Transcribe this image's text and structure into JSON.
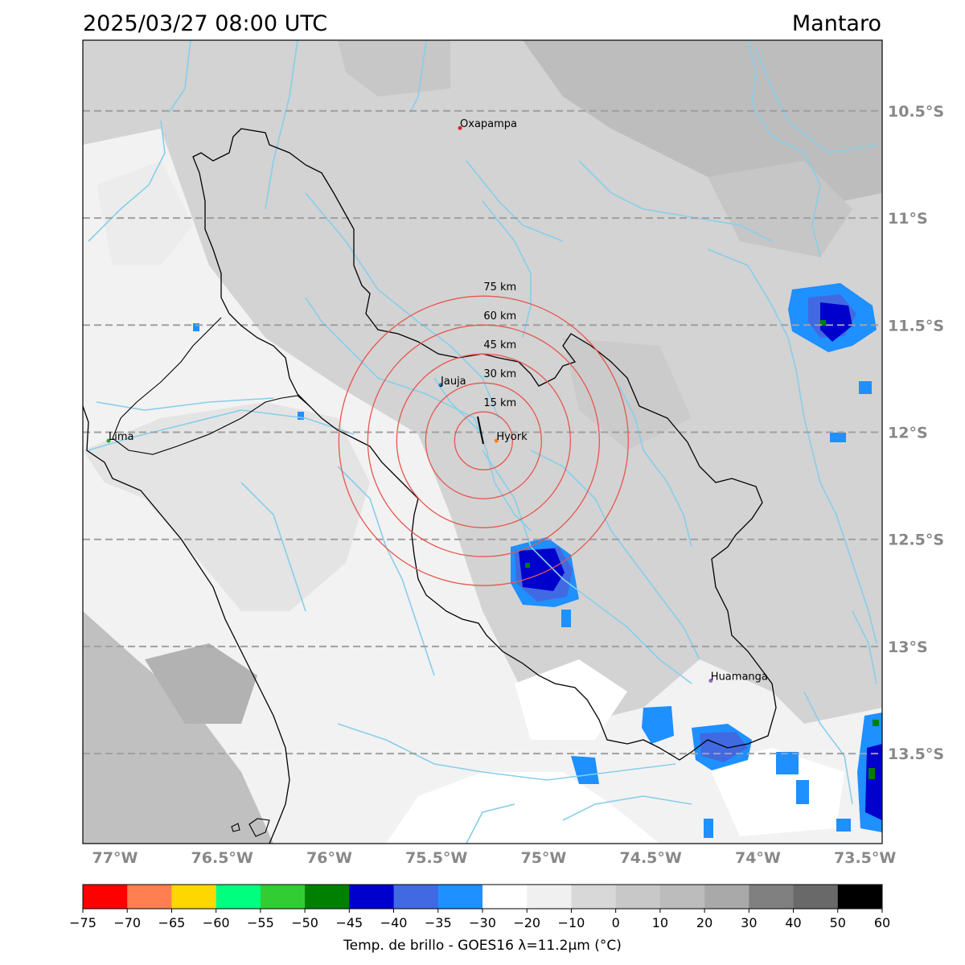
{
  "header": {
    "datetime": "2025/03/27 08:00 UTC",
    "region": "Mantaro"
  },
  "map": {
    "lon_range": [
      -77.15,
      -73.42
    ],
    "lat_range": [
      -13.92,
      -10.17
    ],
    "lat_gridlines": [
      {
        "value": -10.5,
        "label": "10.5°S"
      },
      {
        "value": -11.0,
        "label": "11°S"
      },
      {
        "value": -11.5,
        "label": "11.5°S"
      },
      {
        "value": -12.0,
        "label": "12°S"
      },
      {
        "value": -12.5,
        "label": "12.5°S"
      },
      {
        "value": -13.0,
        "label": "13°S"
      },
      {
        "value": -13.5,
        "label": "13.5°S"
      }
    ],
    "lon_ticks": [
      {
        "value": -77.0,
        "label": "77°W"
      },
      {
        "value": -76.5,
        "label": "76.5°W"
      },
      {
        "value": -76.0,
        "label": "76°W"
      },
      {
        "value": -75.5,
        "label": "75.5°W"
      },
      {
        "value": -75.0,
        "label": "75°W"
      },
      {
        "value": -74.5,
        "label": "74.5°W"
      },
      {
        "value": -74.0,
        "label": "74°W"
      },
      {
        "value": -73.5,
        "label": "73.5°W"
      }
    ],
    "cities": [
      {
        "name": "Oxapampa",
        "lon": -75.39,
        "lat": -10.58,
        "color": "#d62728"
      },
      {
        "name": "Jauja",
        "lon": -75.48,
        "lat": -11.78,
        "color": "#1f77b4"
      },
      {
        "name": "Hyork",
        "lon": -75.22,
        "lat": -12.04,
        "color": "#ff7f0e"
      },
      {
        "name": "Lima",
        "lon": -77.03,
        "lat": -12.04,
        "color": "#2ca02c"
      },
      {
        "name": "Huamanga",
        "lon": -74.22,
        "lat": -13.16,
        "color": "#9467bd"
      }
    ],
    "radar_rings": {
      "center": {
        "lon": -75.28,
        "lat": -12.04
      },
      "radii_km": [
        15,
        30,
        45,
        60,
        75
      ],
      "labels": [
        "15 km",
        "30 km",
        "45 km",
        "60 km",
        "75 km"
      ],
      "color": "#e8564e"
    }
  },
  "colorbar": {
    "title": "Temp. de brillo - GOES16 λ=11.2μm (°C)",
    "tick_labels": [
      "−75",
      "−70",
      "−65",
      "−60",
      "−55",
      "−50",
      "−45",
      "−40",
      "−35",
      "−30",
      "−20",
      "−10",
      "0",
      "10",
      "20",
      "30",
      "40",
      "50",
      "60"
    ],
    "colors": [
      "#ff0000",
      "#ff7f50",
      "#ffd700",
      "#00ff7f",
      "#32cd32",
      "#008000",
      "#0000cd",
      "#4169e1",
      "#1e90ff",
      "#ffffff",
      "#f0f0f0",
      "#d8d8d8",
      "#c8c8c8",
      "#bcbcbc",
      "#a9a9a9",
      "#808080",
      "#696969",
      "#000000"
    ]
  }
}
